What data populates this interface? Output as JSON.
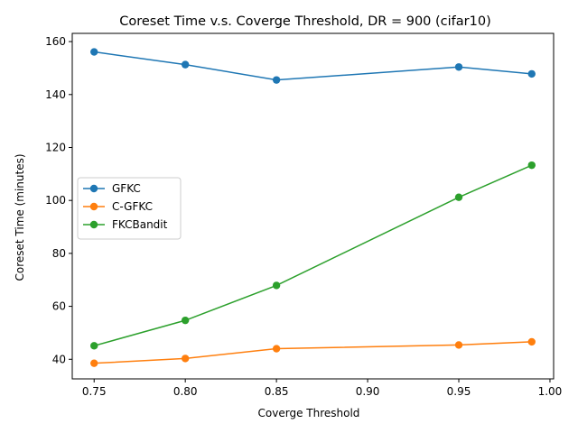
{
  "chart_data": {
    "type": "line",
    "title": "Coreset Time v.s. Coverge Threshold, DR = 900 (cifar10)",
    "xlabel": "Coverge Threshold",
    "ylabel": "Coreset Time (minutes)",
    "x": [
      0.75,
      0.8,
      0.85,
      0.95,
      0.99
    ],
    "xlim": [
      0.738,
      1.002
    ],
    "ylim": [
      32.6,
      163.1
    ],
    "xticks": [
      "0.75",
      "0.80",
      "0.85",
      "0.90",
      "0.95",
      "1.00"
    ],
    "xtick_values": [
      0.75,
      0.8,
      0.85,
      0.9,
      0.95,
      1.0
    ],
    "yticks": [
      "40",
      "60",
      "80",
      "100",
      "120",
      "140",
      "160"
    ],
    "ytick_values": [
      40,
      60,
      80,
      100,
      120,
      140,
      160
    ],
    "grid": false,
    "legend_position": "center-left",
    "series": [
      {
        "name": "GFKC",
        "color": "#1f77b4",
        "values": [
          156.1,
          151.3,
          145.5,
          150.4,
          147.8
        ]
      },
      {
        "name": "C-GFKC",
        "color": "#ff7f0e",
        "values": [
          38.5,
          40.3,
          44.0,
          45.4,
          46.6
        ]
      },
      {
        "name": "FKCBandit",
        "color": "#2ca02c",
        "values": [
          45.1,
          54.7,
          67.9,
          101.2,
          113.3
        ]
      }
    ]
  }
}
